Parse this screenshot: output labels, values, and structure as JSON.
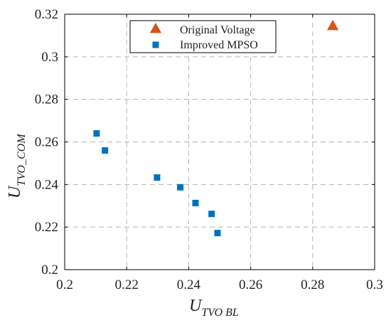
{
  "chart_data": {
    "type": "scatter",
    "xlabel": {
      "main": "U",
      "sub": "TVO BL"
    },
    "ylabel": {
      "main": "U",
      "sub": "TVO_COM"
    },
    "xlim": [
      0.2,
      0.3
    ],
    "ylim": [
      0.2,
      0.32
    ],
    "xticks": [
      0.2,
      0.22,
      0.24,
      0.26,
      0.28,
      0.3
    ],
    "xtick_labels": [
      "0.2",
      "0.22",
      "0.24",
      "0.26",
      "0.28",
      "0.3"
    ],
    "yticks": [
      0.2,
      0.22,
      0.24,
      0.26,
      0.28,
      0.3,
      0.32
    ],
    "ytick_labels": [
      "0.2",
      "0.22",
      "0.24",
      "0.26",
      "0.28",
      "0.3",
      "0.32"
    ],
    "grid": true,
    "grid_style": "dashed",
    "legend_position": "top",
    "series": [
      {
        "name": "Original Voltage",
        "marker": "triangle",
        "color": "#d95319",
        "points": [
          {
            "x": 0.2865,
            "y": 0.3145
          }
        ]
      },
      {
        "name": "Improved MPSO",
        "marker": "square",
        "color": "#0072bd",
        "points": [
          {
            "x": 0.2103,
            "y": 0.264
          },
          {
            "x": 0.213,
            "y": 0.256
          },
          {
            "x": 0.2298,
            "y": 0.2433
          },
          {
            "x": 0.2373,
            "y": 0.2387
          },
          {
            "x": 0.2422,
            "y": 0.2313
          },
          {
            "x": 0.2474,
            "y": 0.2262
          },
          {
            "x": 0.2493,
            "y": 0.2172
          }
        ]
      }
    ]
  }
}
